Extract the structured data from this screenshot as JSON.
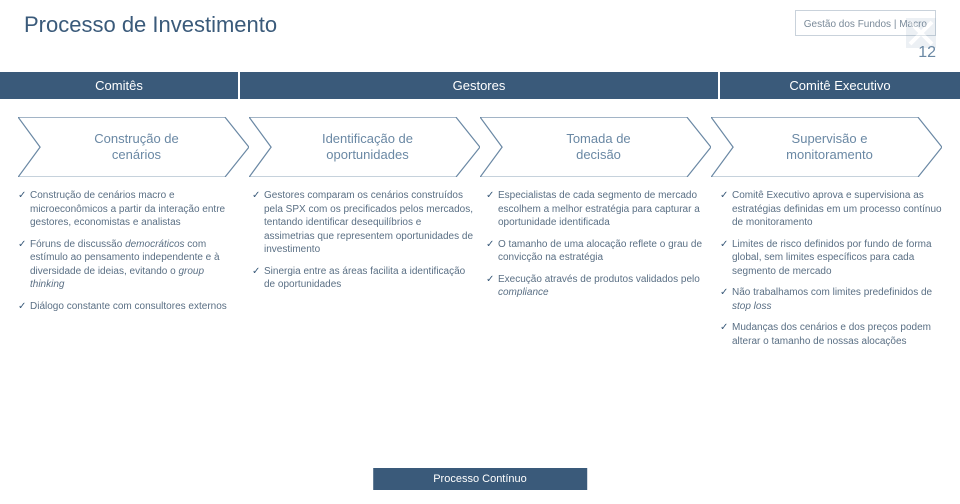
{
  "page": {
    "title": "Processo de Investimento",
    "breadcrumb": "Gestão dos Fundos | Macro",
    "number": "12"
  },
  "column_headers": [
    "Comitês",
    "Gestores",
    "Comitê Executivo"
  ],
  "arrows": {
    "stroke": "#6a88a4",
    "fill": "#ffffff",
    "items": [
      {
        "line1": "Construção de",
        "line2": "cenários"
      },
      {
        "line1": "Identificação de",
        "line2": "oportunidades"
      },
      {
        "line1": "Tomada de",
        "line2": "decisão"
      },
      {
        "line1": "Supervisão e",
        "line2": "monitoramento"
      }
    ]
  },
  "bullets": {
    "col1": [
      "Construção de cenários macro e microeconômicos a partir da interação entre gestores, economistas e analistas",
      "Fóruns de discussão <span class=\"italic\">democráticos</span> com estímulo ao pensamento independente e à diversidade de ideias, evitando o <span class=\"italic\">group thinking</span>",
      "Diálogo constante com consultores externos"
    ],
    "col2": [
      "Gestores comparam os cenários construídos pela SPX com os precificados pelos mercados, tentando identificar desequilíbrios e assimetrias que representem oportunidades de investimento",
      "Sinergia entre as áreas facilita a identificação de oportunidades"
    ],
    "col3": [
      "Especialistas de cada segmento de mercado escolhem a melhor estratégia para capturar a oportunidade identificada",
      "O tamanho de uma alocação reflete o grau de convicção na estratégia",
      "Execução através de produtos validados pelo <span class=\"italic\">compliance</span>"
    ],
    "col4": [
      "Comitê Executivo aprova e supervisiona as estratégias definidas em um processo contínuo de monitoramento",
      "Limites de risco definidos por fundo de forma global, sem limites específicos para cada segmento de mercado",
      "Não trabalhamos com limites predefinidos de <span class=\"italic\">stop loss</span>",
      "Mudanças dos cenários e dos preços podem alterar o tamanho de nossas alocações"
    ]
  },
  "footer": "Processo Contínuo",
  "colors": {
    "primary": "#3a5a7a",
    "text": "#5a6f84",
    "arrow_stroke": "#6a88a4"
  }
}
